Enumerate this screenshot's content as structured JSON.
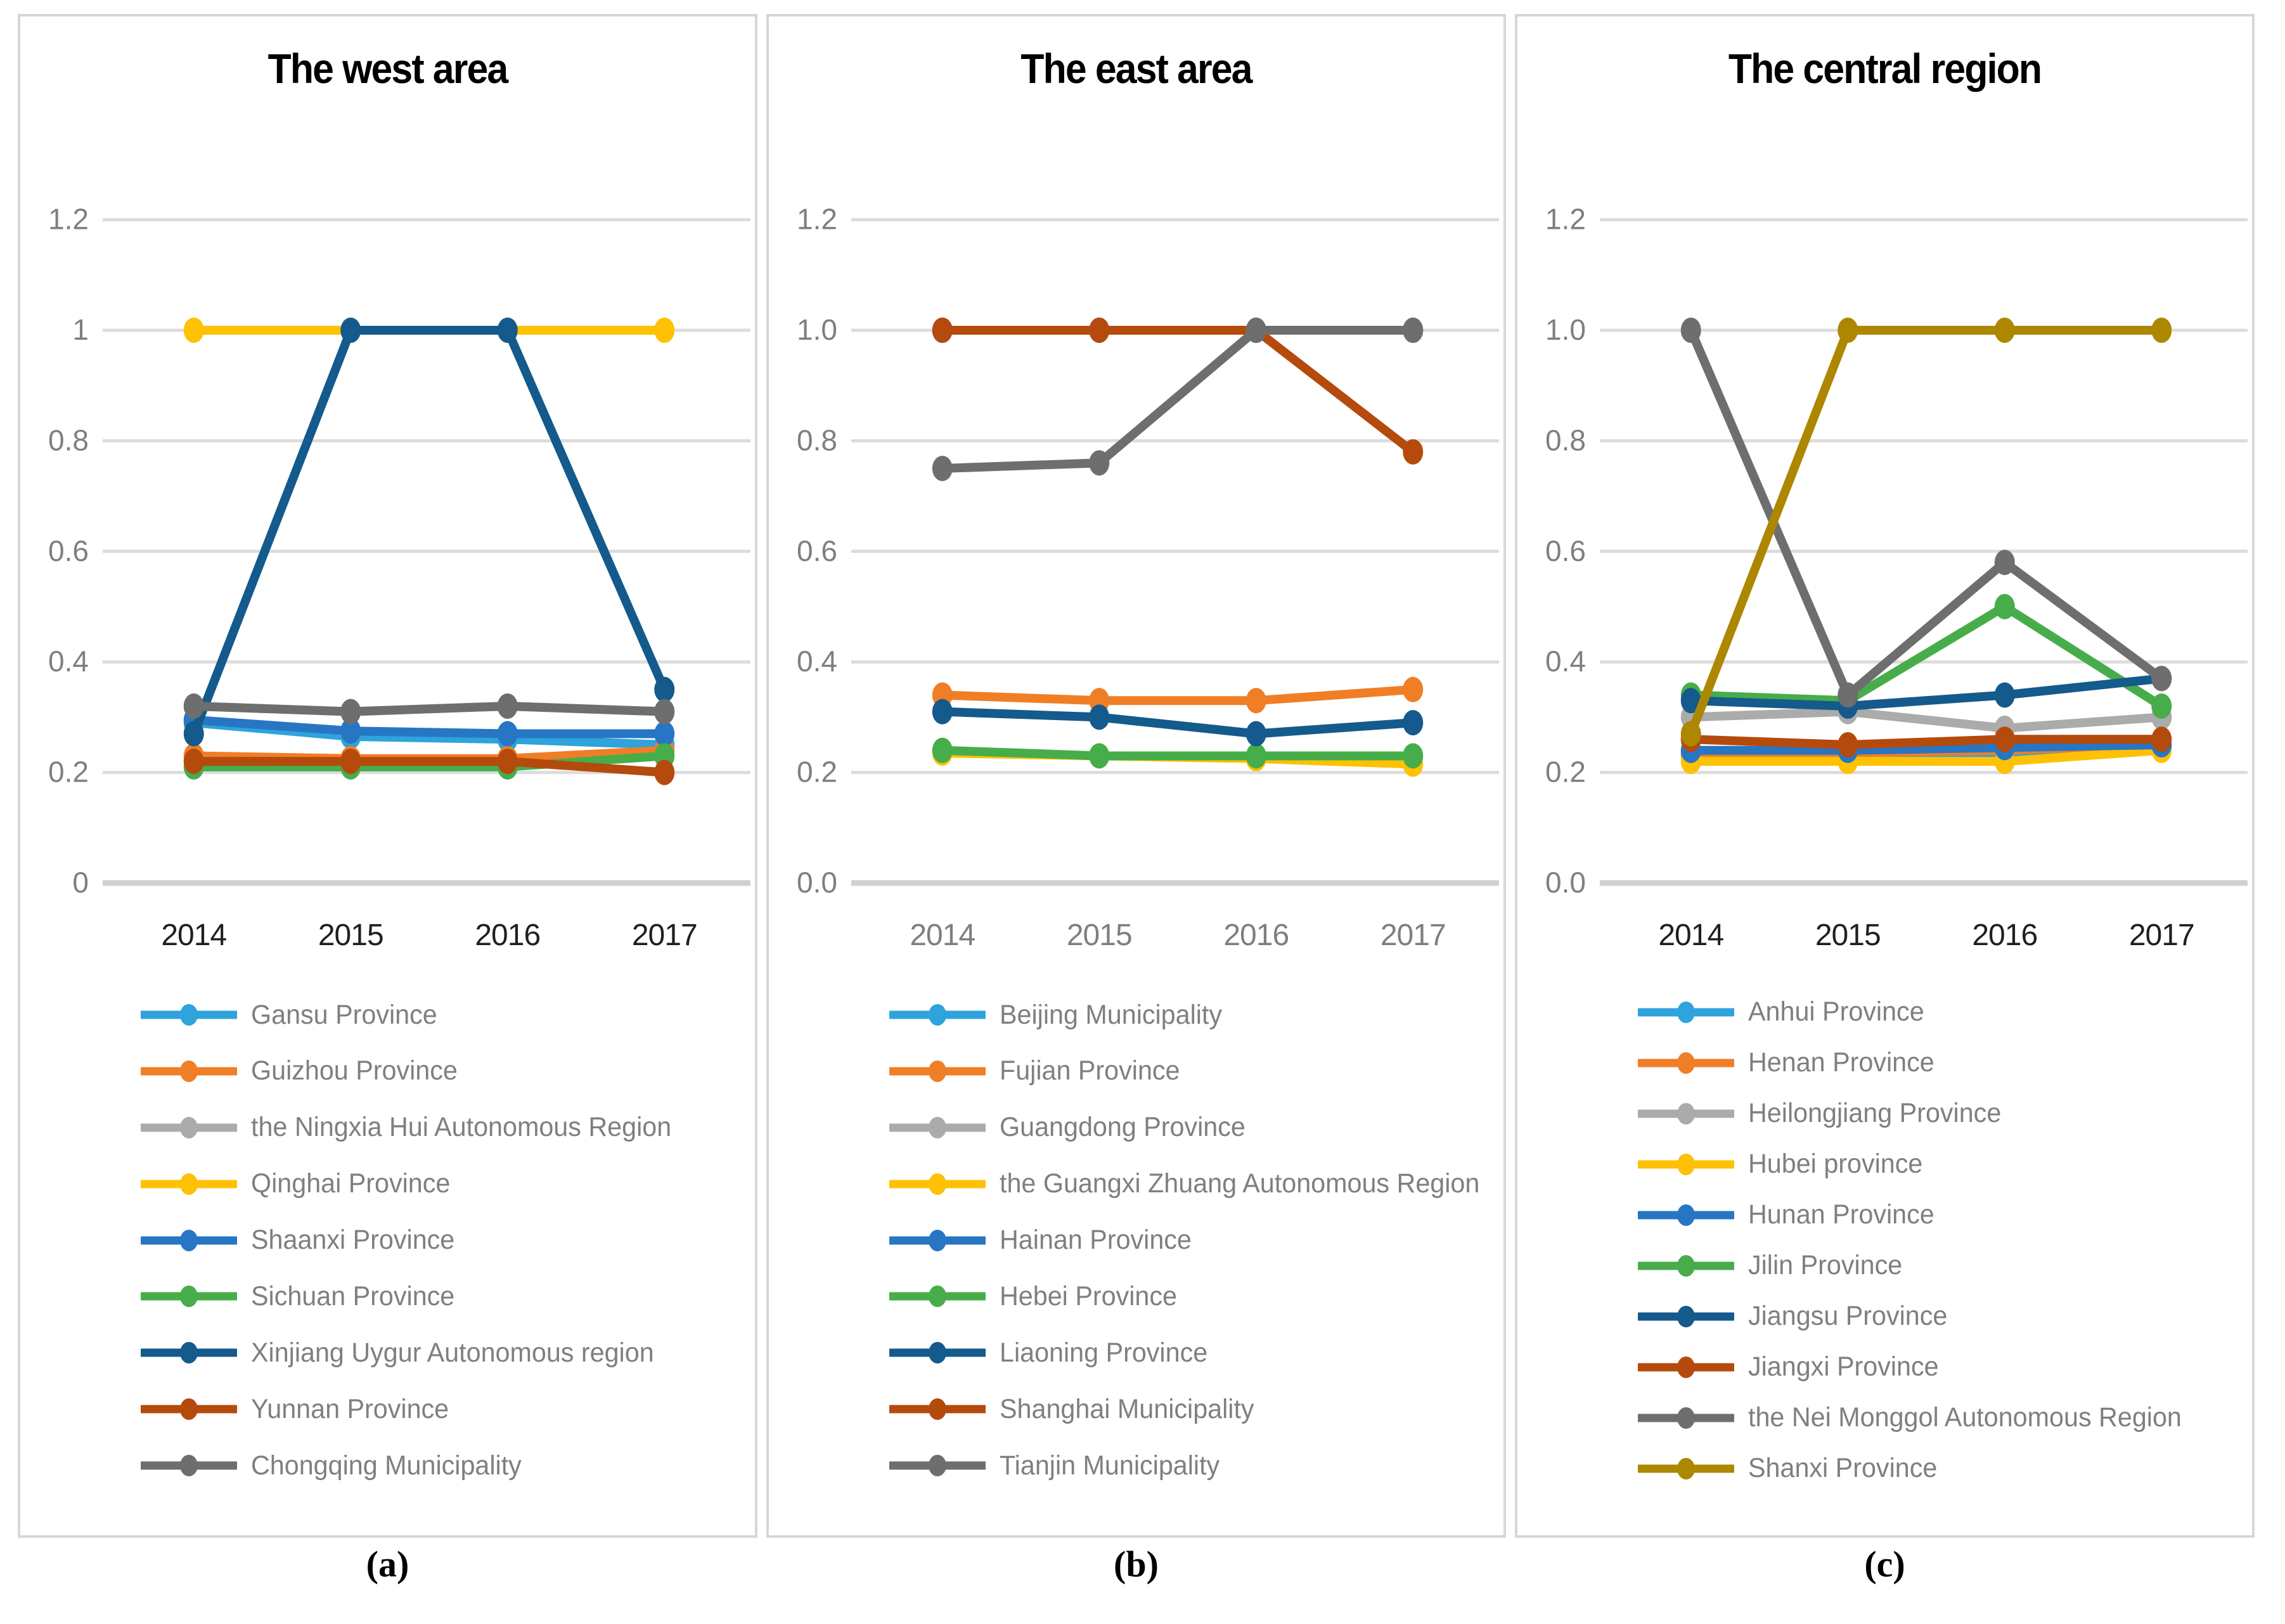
{
  "colors": {
    "grid_line": "#dcdcdc",
    "axis_baseline": "#d0d0d0",
    "tick_text": "#7f7f7f",
    "panel_border": "#d7d7d7",
    "title_text": "#000000",
    "legend_text": "#7f7f7f"
  },
  "chart_data": [
    {
      "type": "line",
      "title": "The west area",
      "caption": "(a)",
      "categories": [
        "2014",
        "2015",
        "2016",
        "2017"
      ],
      "y_ticks": [
        "1.2",
        "1",
        "0.8",
        "0.6",
        "0.4",
        "0.2",
        "0"
      ],
      "ylim": [
        0,
        1.2
      ],
      "grid": true,
      "legend_position": "bottom-left",
      "x_label_color": "#1f1f1f",
      "series": [
        {
          "name": "Gansu Province",
          "color": "#2ea3dc",
          "values": [
            0.29,
            0.265,
            0.26,
            0.25
          ]
        },
        {
          "name": "Guizhou Province",
          "color": "#f07e26",
          "values": [
            0.23,
            0.225,
            0.225,
            0.24
          ]
        },
        {
          "name": "the Ningxia Hui Autonomous Region",
          "color": "#ababab",
          "values": [
            0.32,
            0.31,
            0.32,
            0.31
          ]
        },
        {
          "name": "Qinghai Province",
          "color": "#ffc104",
          "values": [
            1.0,
            1.0,
            1.0,
            1.0
          ]
        },
        {
          "name": "Shaanxi Province",
          "color": "#2776c4",
          "values": [
            0.295,
            0.275,
            0.27,
            0.27
          ]
        },
        {
          "name": "Sichuan Province",
          "color": "#46ad4a",
          "values": [
            0.21,
            0.21,
            0.21,
            0.23
          ]
        },
        {
          "name": "Xinjiang Uygur Autonomous region",
          "color": "#145a8c",
          "values": [
            0.27,
            1.0,
            1.0,
            0.35
          ]
        },
        {
          "name": "Yunnan Province",
          "color": "#b54a0d",
          "values": [
            0.22,
            0.22,
            0.22,
            0.2
          ]
        },
        {
          "name": "Chongqing Municipality",
          "color": "#6e6e6e",
          "values": [
            0.32,
            0.31,
            0.32,
            0.31
          ]
        }
      ]
    },
    {
      "type": "line",
      "title": "The east area",
      "caption": "(b)",
      "categories": [
        "2014",
        "2015",
        "2016",
        "2017"
      ],
      "y_ticks": [
        "1.2",
        "1.0",
        "0.8",
        "0.6",
        "0.4",
        "0.2",
        "0.0"
      ],
      "ylim": [
        0,
        1.2
      ],
      "grid": true,
      "legend_position": "bottom-left",
      "x_label_color": "#7f7f7f",
      "series": [
        {
          "name": "Beijing Municipality",
          "color": "#2ea3dc",
          "values": [
            1.0,
            1.0,
            1.0,
            1.0
          ]
        },
        {
          "name": "Fujian Province",
          "color": "#f07e26",
          "values": [
            0.34,
            0.33,
            0.33,
            0.35
          ]
        },
        {
          "name": "Guangdong Province",
          "color": "#ababab",
          "values": [
            1.0,
            1.0,
            1.0,
            1.0
          ]
        },
        {
          "name": "the Guangxi Zhuang Autonomous Region",
          "color": "#ffc104",
          "values": [
            0.235,
            0.23,
            0.225,
            0.215
          ]
        },
        {
          "name": "Hainan Province",
          "color": "#2776c4",
          "values": [
            1.0,
            1.0,
            1.0,
            1.0
          ]
        },
        {
          "name": "Hebei Province",
          "color": "#46ad4a",
          "values": [
            0.24,
            0.23,
            0.23,
            0.23
          ]
        },
        {
          "name": "Liaoning Province",
          "color": "#145a8c",
          "values": [
            0.31,
            0.3,
            0.27,
            0.29
          ]
        },
        {
          "name": "Shanghai Municipality",
          "color": "#b54a0d",
          "values": [
            1.0,
            1.0,
            1.0,
            0.78
          ]
        },
        {
          "name": "Tianjin Municipality",
          "color": "#6e6e6e",
          "values": [
            0.75,
            0.76,
            1.0,
            1.0
          ]
        }
      ]
    },
    {
      "type": "line",
      "title": "The central region",
      "caption": "(c)",
      "categories": [
        "2014",
        "2015",
        "2016",
        "2017"
      ],
      "y_ticks": [
        "1.2",
        "1.0",
        "0.8",
        "0.6",
        "0.4",
        "0.2",
        "0.0"
      ],
      "ylim": [
        0,
        1.2
      ],
      "grid": true,
      "legend_position": "bottom-left",
      "x_label_color": "#1f1f1f",
      "series": [
        {
          "name": "Anhui Province",
          "color": "#2ea3dc",
          "values": [
            0.23,
            0.23,
            0.235,
            0.245
          ]
        },
        {
          "name": "Henan Province",
          "color": "#f07e26",
          "values": [
            0.235,
            0.235,
            0.24,
            0.25
          ]
        },
        {
          "name": "Heilongjiang Province",
          "color": "#ababab",
          "values": [
            0.3,
            0.31,
            0.28,
            0.3
          ]
        },
        {
          "name": "Hubei province",
          "color": "#ffc104",
          "values": [
            0.22,
            0.22,
            0.22,
            0.24
          ]
        },
        {
          "name": "Hunan Province",
          "color": "#2776c4",
          "values": [
            0.24,
            0.24,
            0.245,
            0.25
          ]
        },
        {
          "name": "Jilin Province",
          "color": "#46ad4a",
          "values": [
            0.34,
            0.33,
            0.5,
            0.32
          ]
        },
        {
          "name": "Jiangsu Province",
          "color": "#145a8c",
          "values": [
            0.33,
            0.32,
            0.34,
            0.37
          ]
        },
        {
          "name": "Jiangxi Province",
          "color": "#b54a0d",
          "values": [
            0.26,
            0.25,
            0.26,
            0.26
          ]
        },
        {
          "name": "the Nei Monggol Autonomous Region",
          "color": "#6e6e6e",
          "values": [
            1.0,
            0.34,
            0.58,
            0.37
          ]
        },
        {
          "name": "Shanxi Province",
          "color": "#ad8700",
          "values": [
            0.27,
            1.0,
            1.0,
            1.0
          ]
        }
      ]
    }
  ]
}
